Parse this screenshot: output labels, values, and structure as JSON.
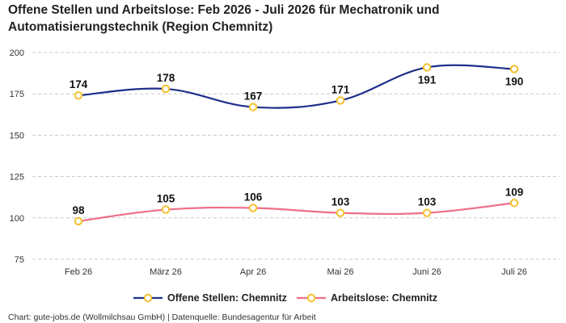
{
  "chart_data": {
    "type": "line",
    "title": "Offene Stellen und Arbeitslose: Feb 2026 - Juli 2026 für Mechatronik und Automatisierungstechnik (Region Chemnitz)",
    "categories": [
      "Feb 26",
      "März 26",
      "Apr 26",
      "Mai 26",
      "Juni 26",
      "Juli 26"
    ],
    "series": [
      {
        "name": "Offene Stellen: Chemnitz",
        "values": [
          174,
          178,
          167,
          171,
          191,
          190
        ],
        "color": "#1f2f8a"
      },
      {
        "name": "Arbeitslose: Chemnitz",
        "values": [
          98,
          105,
          106,
          103,
          103,
          109
        ],
        "color": "#ee6e8a"
      }
    ],
    "ylim": [
      75,
      200
    ],
    "yticks": [
      75,
      100,
      125,
      150,
      175,
      200
    ],
    "grid": true,
    "legend": "bottom",
    "marker_color": "#f2c12e"
  },
  "footer": "Chart: gute-jobs.de (Wollmilchsau GmbH) | Datenquelle: Bundesagentur für Arbeit"
}
